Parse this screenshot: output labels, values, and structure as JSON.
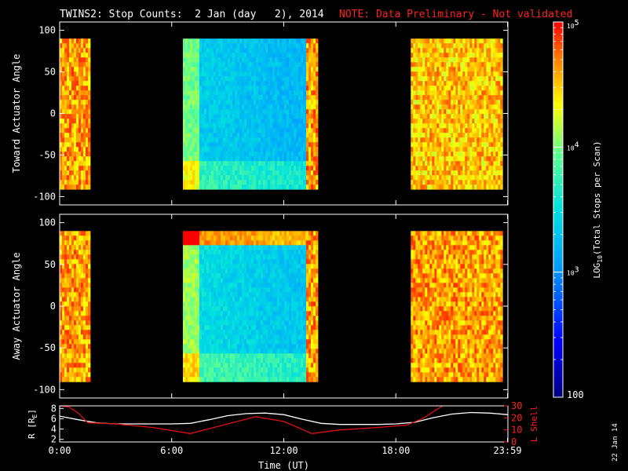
{
  "header": {
    "title": "TWINS2: Stop Counts:  2 Jan (day   2), 2014",
    "note": "NOTE: Data Preliminary - Not validated"
  },
  "colors": {
    "note": "#ff2020",
    "r_line": "#ffffff",
    "l_line": "#e01010"
  },
  "stamp": "22 Jan 14",
  "chart_data": [
    {
      "type": "heatmap",
      "ylabel": "Toward Actuator Angle",
      "ylim": [
        -110,
        110
      ],
      "yticks": [
        "100",
        "50",
        "0",
        "-50",
        "-100"
      ],
      "xlim": [
        0,
        24
      ],
      "data_extent": [
        -90,
        90
      ],
      "intervals": [
        {
          "start": 0.0,
          "end": 1.6,
          "level": 4.6
        },
        {
          "start": 6.6,
          "end": 13.2,
          "level": 3.4
        },
        {
          "start": 13.2,
          "end": 13.8,
          "level": 4.6
        },
        {
          "start": 18.8,
          "end": 23.6,
          "level": 4.5
        }
      ]
    },
    {
      "type": "heatmap",
      "ylabel": "Away Actuator Angle",
      "ylim": [
        -110,
        110
      ],
      "yticks": [
        "100",
        "50",
        "0",
        "-50",
        "-100"
      ],
      "xlim": [
        0,
        24
      ],
      "data_extent": [
        -90,
        90
      ],
      "intervals": [
        {
          "start": 0.0,
          "end": 1.6,
          "level": 4.6
        },
        {
          "start": 6.6,
          "end": 13.2,
          "level": 3.5
        },
        {
          "start": 13.2,
          "end": 13.8,
          "level": 4.6
        },
        {
          "start": 18.8,
          "end": 23.6,
          "level": 4.6
        }
      ]
    },
    {
      "type": "line",
      "ylabel_left": "R [R",
      "ylabel_left_sub": "E",
      "ylabel_left_close": "]",
      "ylabel_right": "L Shell",
      "ylim_left": [
        1.5,
        8.5
      ],
      "ylim_right": [
        0,
        30
      ],
      "yticks_left": [
        "2",
        "4",
        "6",
        "8"
      ],
      "yticks_right": [
        "0",
        "10",
        "20",
        "30"
      ],
      "xlim": [
        0,
        24
      ],
      "xlabel": "Time (UT)",
      "xticks": [
        {
          "x": 0,
          "label": "0:00"
        },
        {
          "x": 6,
          "label": "6:00"
        },
        {
          "x": 12,
          "label": "12:00"
        },
        {
          "x": 18,
          "label": "18:00"
        },
        {
          "x": 23.98,
          "label": "23:59"
        }
      ],
      "series": [
        {
          "axis": "left",
          "x": [
            0,
            1,
            2,
            3,
            4,
            5,
            6,
            7,
            8,
            9,
            10,
            11,
            12,
            13,
            14,
            15,
            16,
            17,
            18,
            19,
            20,
            21,
            22,
            23,
            24
          ],
          "values": [
            6.5,
            5.8,
            5.2,
            5.0,
            5.0,
            5.0,
            5.0,
            5.1,
            5.8,
            6.6,
            7.0,
            7.1,
            6.8,
            5.9,
            5.1,
            4.9,
            4.9,
            4.9,
            5.0,
            5.3,
            6.2,
            6.9,
            7.2,
            7.1,
            6.8
          ]
        },
        {
          "axis": "right",
          "x": [
            0,
            0.5,
            1.0,
            1.5,
            3,
            5,
            7.0,
            9,
            10.5,
            12,
            13.5,
            15,
            17,
            18.6,
            19.5,
            20.5,
            21
          ],
          "values": [
            30,
            29,
            24,
            16,
            15,
            12,
            7,
            15,
            21,
            17,
            7,
            10,
            12,
            14,
            20,
            30,
            32
          ]
        }
      ]
    }
  ],
  "colorbar": {
    "label_pre": "LOG",
    "label_sub": "10",
    "label_post": "(Total Stops per Scan)",
    "log_range": [
      2,
      5
    ],
    "ticks": [
      {
        "base": "10",
        "exp": "5",
        "value": 5
      },
      {
        "base": "10",
        "exp": "4",
        "value": 4
      },
      {
        "base": "10",
        "exp": "3",
        "value": 3
      },
      {
        "base": "100",
        "exp": "",
        "value": 2
      }
    ]
  }
}
